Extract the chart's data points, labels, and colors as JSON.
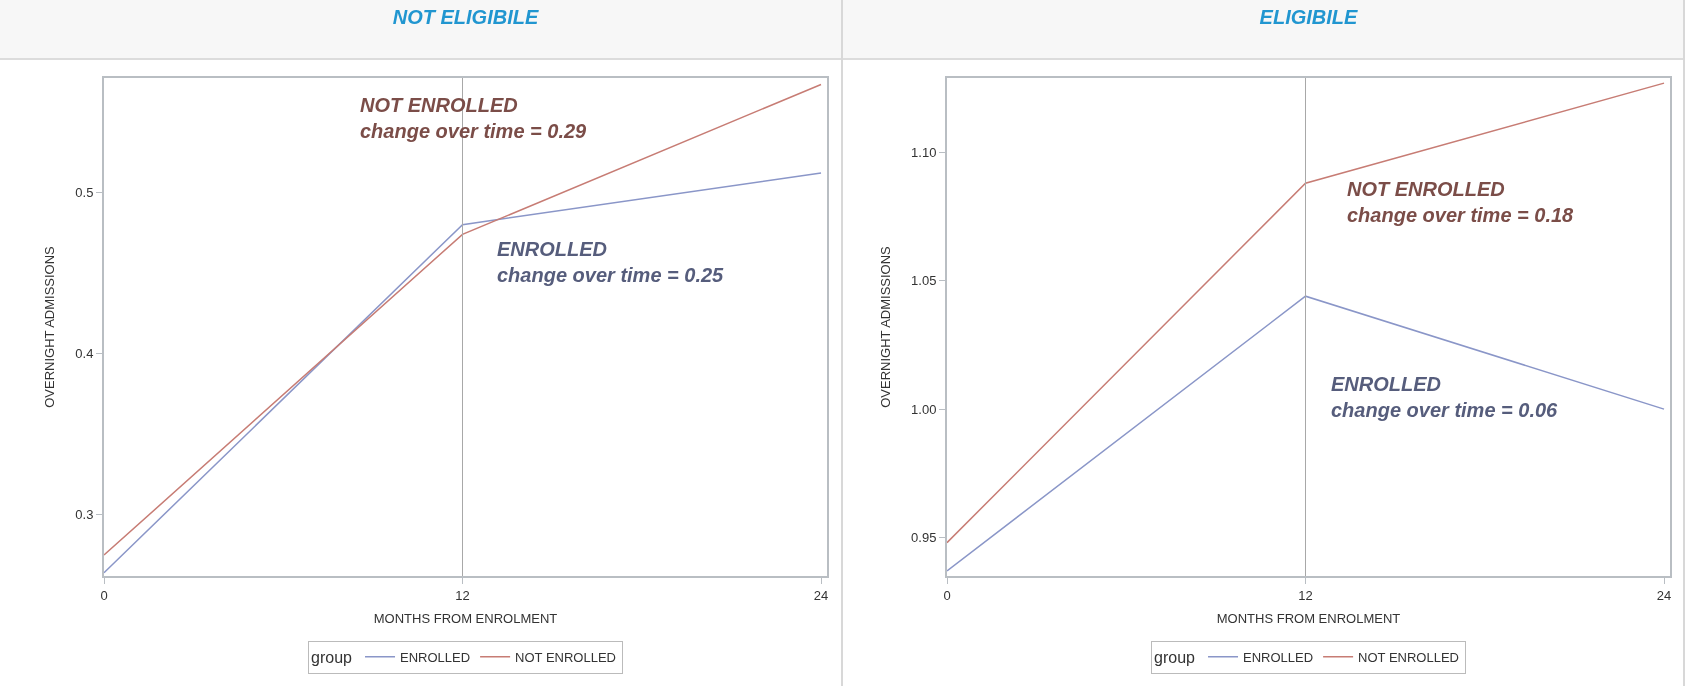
{
  "chart_data": [
    {
      "type": "line",
      "title": "NOT ELIGIBILE",
      "xlabel": "MONTHS FROM ENROLMENT",
      "ylabel": "OVERNIGHT ADMISSIONS",
      "legend_title": "group",
      "legend": "bottom",
      "grid": false,
      "x": [
        0,
        12,
        24
      ],
      "xlim": [
        0,
        24.2
      ],
      "xticks": [
        0,
        12,
        24
      ],
      "ylim": [
        0.262,
        0.571
      ],
      "yticks": [
        0.3,
        0.4,
        0.5
      ],
      "series": [
        {
          "name": "ENROLLED",
          "color": "#8a96c8",
          "values": [
            0.264,
            0.48,
            0.512
          ]
        },
        {
          "name": "NOT ENROLLED",
          "color": "#c77c74",
          "values": [
            0.275,
            0.474,
            0.567
          ]
        }
      ],
      "ref_lines": [
        {
          "axis": "x",
          "value": 12,
          "color": "#a8a8a8"
        }
      ],
      "annotations": [
        "ENROLLED\nchange over time = 0.25",
        "NOT ENROLLED\nchange over time = 0.29"
      ]
    },
    {
      "type": "line",
      "title": "ELIGIBILE",
      "xlabel": "MONTHS FROM ENROLMENT",
      "ylabel": "OVERNIGHT ADMISSIONS",
      "legend_title": "group",
      "legend": "bottom",
      "grid": false,
      "x": [
        0,
        12,
        24
      ],
      "xlim": [
        0,
        24.2
      ],
      "xticks": [
        0,
        12,
        24
      ],
      "ylim": [
        0.935,
        1.129
      ],
      "yticks": [
        {
          "value": 0.95,
          "label": "0.95"
        },
        {
          "value": 1.0,
          "label": "1.00"
        },
        {
          "value": 1.05,
          "label": "1.05"
        },
        {
          "value": 1.1,
          "label": "1.10"
        }
      ],
      "series": [
        {
          "name": "ENROLLED",
          "color": "#8a96c8",
          "values": [
            0.937,
            1.044,
            1.0
          ]
        },
        {
          "name": "NOT ENROLLED",
          "color": "#c77c74",
          "values": [
            0.948,
            1.088,
            1.127
          ]
        }
      ],
      "ref_lines": [
        {
          "axis": "x",
          "value": 12,
          "color": "#a8a8a8"
        }
      ],
      "annotations": [
        "ENROLLED\nchange over time = 0.06",
        "NOT ENROLLED\nchange over time = 0.18"
      ]
    }
  ]
}
